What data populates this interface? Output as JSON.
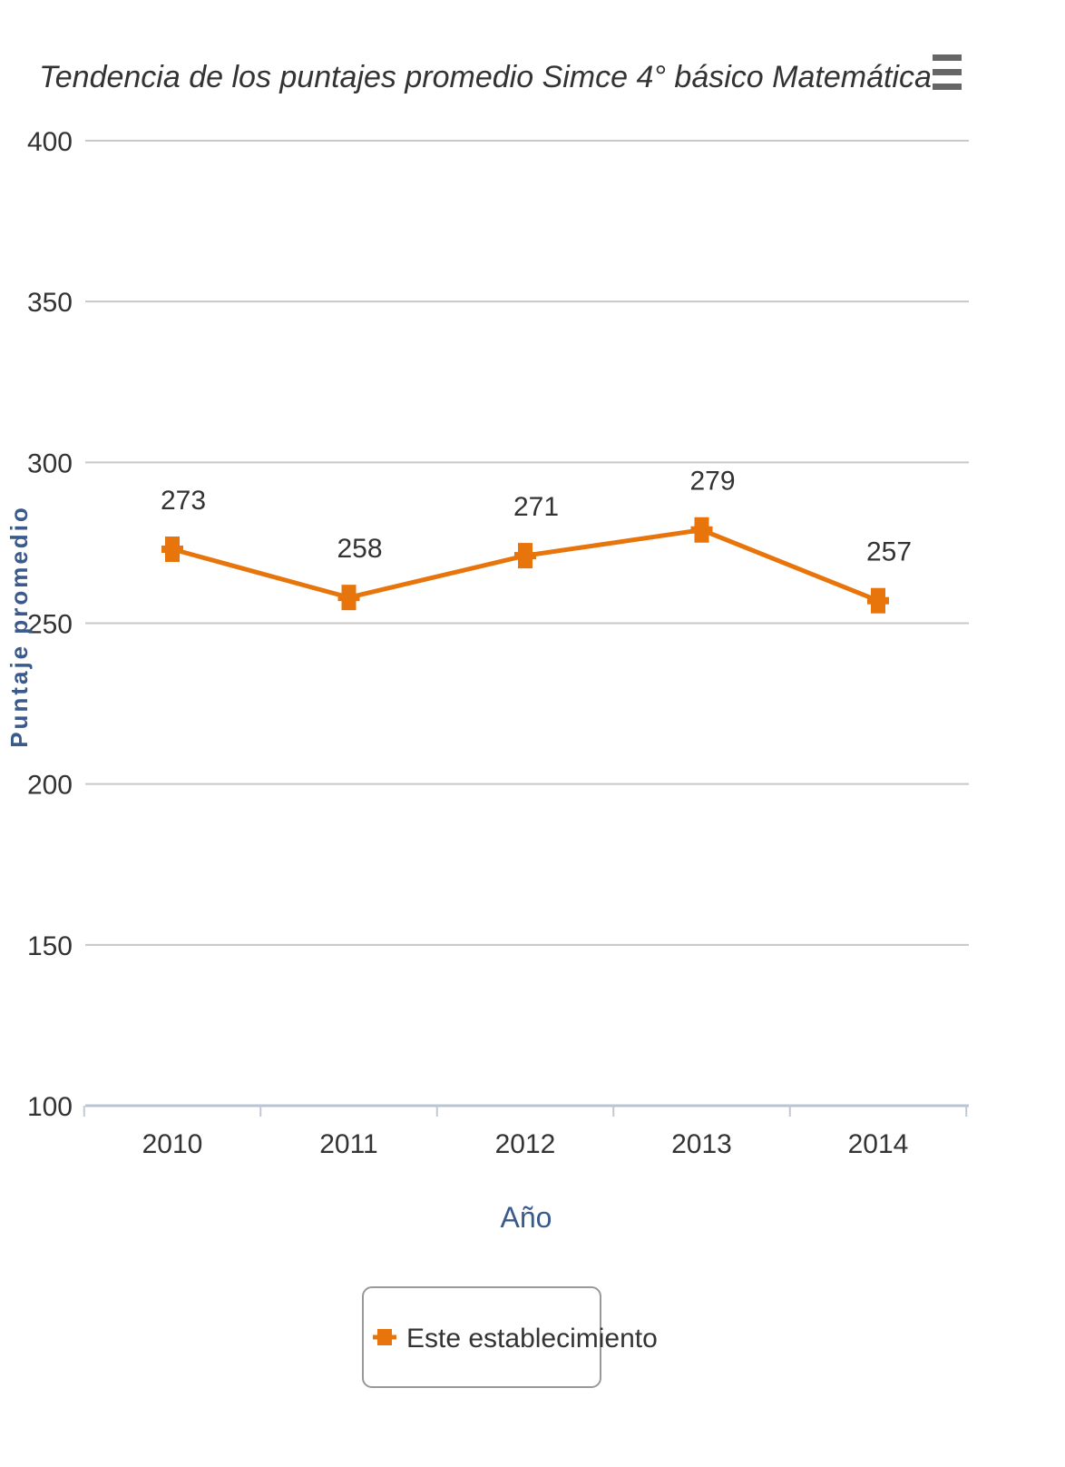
{
  "menu_icon": "hamburger-menu-icon",
  "colors": {
    "series": "#e8740c",
    "grid": "#c8c8c8",
    "axis_title": "#3a5a8c",
    "text": "#333333",
    "legend_border": "#999999",
    "menu": "#666666"
  },
  "chart_data": {
    "type": "line",
    "title": "Tendencia de los puntajes promedio Simce 4° básico Matemática",
    "xlabel": "Año",
    "ylabel": "Puntaje promedio",
    "categories": [
      "2010",
      "2011",
      "2012",
      "2013",
      "2014"
    ],
    "ylim": [
      100,
      400
    ],
    "yticks": [
      100,
      150,
      200,
      250,
      300,
      350,
      400
    ],
    "grid": true,
    "legend_position": "bottom-center",
    "series": [
      {
        "name": "Este establecimiento",
        "values": [
          273,
          258,
          271,
          279,
          257
        ]
      }
    ],
    "data_labels": [
      "273",
      "258",
      "271",
      "279",
      "257"
    ]
  }
}
